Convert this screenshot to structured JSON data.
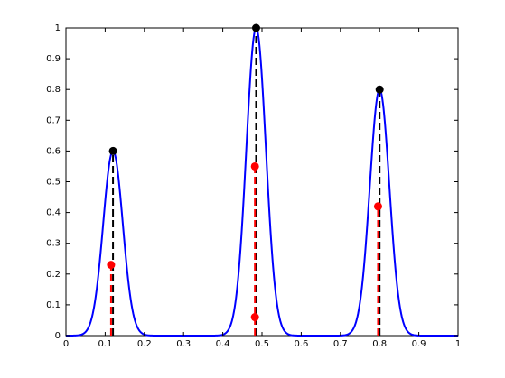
{
  "chart_data": {
    "type": "line",
    "title": "",
    "xlabel": "",
    "ylabel": "",
    "xlim": [
      0,
      1
    ],
    "ylim": [
      0,
      1
    ],
    "x_ticks": [
      0,
      0.1,
      0.2,
      0.3,
      0.4,
      0.5,
      0.6,
      0.7,
      0.8,
      0.9,
      1
    ],
    "x_tick_labels": [
      "0",
      "0.1",
      "0.2",
      "0.3",
      "0.4",
      "0.5",
      "0.6",
      "0.7",
      "0.8",
      "0.9",
      "1"
    ],
    "y_ticks": [
      0,
      0.1,
      0.2,
      0.3,
      0.4,
      0.5,
      0.6,
      0.7,
      0.8,
      0.9,
      1
    ],
    "y_tick_labels": [
      "0",
      "0.1",
      "0.2",
      "0.3",
      "0.4",
      "0.5",
      "0.6",
      "0.7",
      "0.8",
      "0.9",
      "1"
    ],
    "grid": false,
    "curve": {
      "color": "#0000ff",
      "peaks": [
        {
          "center": 0.12,
          "height": 0.6,
          "sigma": 0.025
        },
        {
          "center": 0.485,
          "height": 1.0,
          "sigma": 0.025
        },
        {
          "center": 0.8,
          "height": 0.8,
          "sigma": 0.025
        }
      ]
    },
    "peak_markers": {
      "color": "#000000",
      "points": [
        {
          "x": 0.12,
          "y": 0.6
        },
        {
          "x": 0.485,
          "y": 1.0
        },
        {
          "x": 0.8,
          "y": 0.8
        }
      ]
    },
    "black_stems": {
      "color": "#000000",
      "style": "dashed",
      "lines": [
        {
          "x": 0.12,
          "y": 0.6
        },
        {
          "x": 0.485,
          "y": 1.0
        },
        {
          "x": 0.8,
          "y": 0.8
        }
      ]
    },
    "red_stems": {
      "color": "#ff0000",
      "style": "dashed",
      "lines": [
        {
          "x": 0.115,
          "y": 0.23
        },
        {
          "x": 0.482,
          "y": 0.55
        },
        {
          "x": 0.796,
          "y": 0.42
        }
      ]
    },
    "red_markers": {
      "color": "#ff0000",
      "points": [
        {
          "x": 0.115,
          "y": 0.23
        },
        {
          "x": 0.482,
          "y": 0.55
        },
        {
          "x": 0.482,
          "y": 0.06
        },
        {
          "x": 0.796,
          "y": 0.42
        }
      ]
    }
  }
}
